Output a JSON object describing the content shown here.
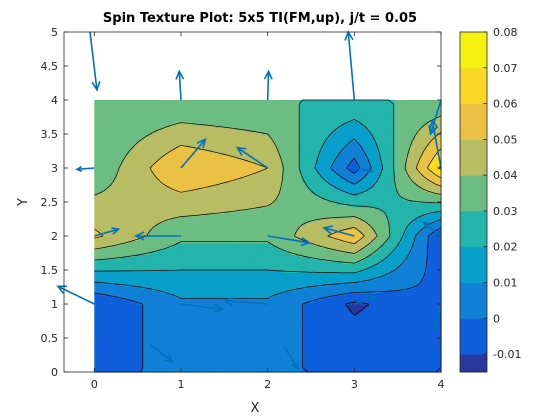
{
  "chart_data": {
    "type": "contour",
    "title": "Spin Texture Plot: 5x5 TI(FM,up), j/t = 0.05",
    "xlabel": "X",
    "ylabel": "Y",
    "xlim": [
      -0.35,
      4.0
    ],
    "ylim": [
      0,
      5
    ],
    "x_ticks": [
      "0",
      "1",
      "2",
      "3",
      "4"
    ],
    "y_ticks": [
      "0",
      "0.5",
      "1",
      "1.5",
      "2",
      "2.5",
      "3",
      "3.5",
      "4",
      "4.5",
      "5"
    ],
    "grid": false,
    "contour": {
      "x": [
        0,
        1,
        2,
        3,
        4
      ],
      "y": [
        0,
        1,
        2,
        3,
        4
      ],
      "z": [
        [
          0.0,
          0.0,
          0.0,
          0.0,
          0.0
        ],
        [
          -0.01,
          0.008,
          0.008,
          -0.012,
          0.0
        ],
        [
          0.052,
          0.032,
          0.032,
          0.058,
          -0.01
        ],
        [
          0.032,
          0.06,
          0.05,
          -0.005,
          0.072
        ],
        [
          0.03,
          0.03,
          0.03,
          0.03,
          0.03
        ]
      ],
      "levels": [
        -0.01,
        0.0,
        0.01,
        0.02,
        0.03,
        0.04,
        0.05,
        0.06,
        0.07
      ]
    },
    "colorbar": {
      "range": [
        -0.015,
        0.08
      ],
      "ticks": [
        "-0.01",
        "0",
        "0.01",
        "0.02",
        "0.03",
        "0.04",
        "0.05",
        "0.06",
        "0.07",
        "0.08"
      ],
      "colormap": "parula"
    },
    "arrows": [
      {
        "x": -0.05,
        "y": 5.0,
        "u": 0.08,
        "v": -0.85
      },
      {
        "x": 1.0,
        "y": 4.0,
        "u": -0.02,
        "v": 0.42
      },
      {
        "x": 2.0,
        "y": 4.0,
        "u": 0.01,
        "v": 0.42
      },
      {
        "x": 3.0,
        "y": 4.0,
        "u": -0.07,
        "v": 1.0
      },
      {
        "x": 4.0,
        "y": 4.0,
        "u": -0.12,
        "v": -0.5
      },
      {
        "x": 0.0,
        "y": 3.0,
        "u": -0.2,
        "v": -0.02
      },
      {
        "x": 1.0,
        "y": 3.0,
        "u": 0.28,
        "v": 0.42
      },
      {
        "x": 2.0,
        "y": 3.0,
        "u": -0.35,
        "v": 0.3
      },
      {
        "x": 3.0,
        "y": 3.0,
        "u": 0.2,
        "v": -0.05
      },
      {
        "x": 4.0,
        "y": 3.0,
        "u": -0.1,
        "v": 0.7
      },
      {
        "x": 1.0,
        "y": 2.0,
        "u": -0.52,
        "v": 0.0
      },
      {
        "x": 0.0,
        "y": 2.0,
        "u": 0.28,
        "v": 0.1
      },
      {
        "x": 2.0,
        "y": 2.0,
        "u": 0.48,
        "v": -0.1
      },
      {
        "x": 3.0,
        "y": 2.0,
        "u": -0.35,
        "v": 0.12
      },
      {
        "x": 4.0,
        "y": 2.0,
        "u": -0.2,
        "v": 0.2
      },
      {
        "x": 0.0,
        "y": 1.0,
        "u": -0.42,
        "v": 0.26
      },
      {
        "x": 1.0,
        "y": 1.0,
        "u": 0.48,
        "v": -0.08
      },
      {
        "x": 2.0,
        "y": 1.0,
        "u": -0.5,
        "v": 0.05
      },
      {
        "x": 3.0,
        "y": 1.0,
        "u": 0.25,
        "v": 0.1
      },
      {
        "x": 4.0,
        "y": 1.0,
        "u": -0.1,
        "v": -0.4
      },
      {
        "x": 0.65,
        "y": 0.4,
        "u": 0.25,
        "v": -0.25
      },
      {
        "x": 2.2,
        "y": 0.35,
        "u": 0.15,
        "v": -0.3
      }
    ]
  }
}
